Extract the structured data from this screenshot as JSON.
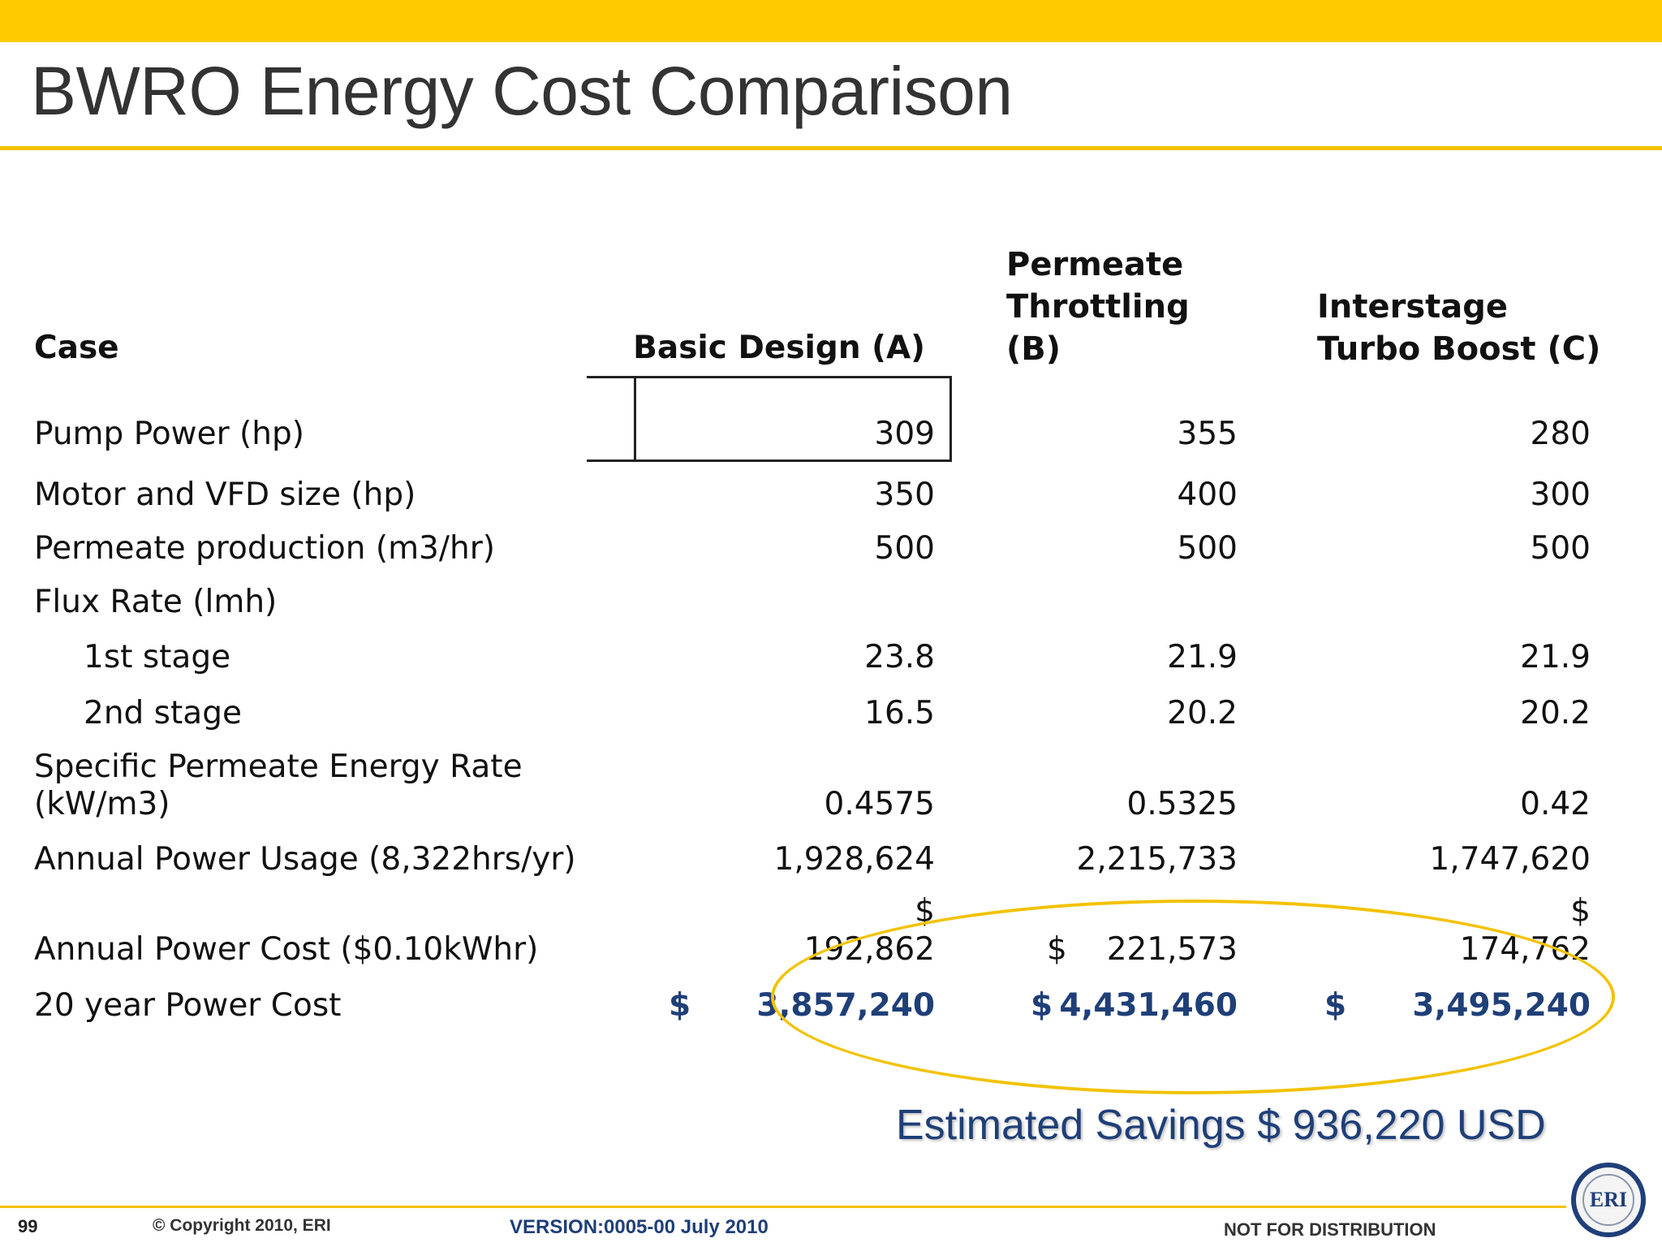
{
  "title": "BWRO Energy Cost Comparison",
  "table": {
    "header": {
      "case": "Case",
      "col_a": "Basic Design (A)",
      "col_b": [
        "Permeate",
        "Throttling",
        "(B)"
      ],
      "col_c": [
        "Interstage",
        "Turbo Boost (C)"
      ]
    },
    "rows": [
      {
        "label": "Pump Power (hp)",
        "a": "309",
        "b": "355",
        "c": "280"
      },
      {
        "label": "Motor and VFD size (hp)",
        "a": "350",
        "b": "400",
        "c": "300"
      },
      {
        "label": "Permeate production (m3/hr)",
        "a": "500",
        "b": "500",
        "c": "500"
      },
      {
        "label": "Flux Rate (lmh)",
        "a": "",
        "b": "",
        "c": ""
      },
      {
        "label": "1st stage",
        "a": "23.8",
        "b": "21.9",
        "c": "21.9"
      },
      {
        "label": "2nd stage",
        "a": "16.5",
        "b": "20.2",
        "c": "20.2"
      },
      {
        "label": [
          "Specific Permeate Energy Rate",
          "(kW/m3)"
        ],
        "a": "0.4575",
        "b": "0.5325",
        "c": "0.42"
      },
      {
        "label": "Annual Power Usage (8,322hrs/yr)",
        "a": "1,928,624",
        "b": "2,215,733",
        "c": "1,747,620"
      },
      {
        "label": "Annual Power Cost ($0.10kWhr)",
        "a_dollar": "$",
        "a": "192,862",
        "b_dollar": "$",
        "b": "221,573",
        "c_dollar": "$",
        "c": "174,762"
      },
      {
        "label": "20 year Power Cost",
        "a_dollar": "$",
        "a": "3,857,240",
        "b_dollar": "$",
        "b": "4,431,460",
        "c_dollar": "$",
        "c": "3,495,240"
      }
    ]
  },
  "savings": "Estimated Savings $ 936,220 USD",
  "footer": {
    "page": "99",
    "copyright": "© Copyright 2010, ERI",
    "version": "VERSION:0005-00 July 2010",
    "distribution": "NOT FOR DISTRIBUTION",
    "logo_text": "ERI"
  },
  "colors": {
    "accent": "#FFCC00",
    "blue_text": "#1F3F78"
  }
}
